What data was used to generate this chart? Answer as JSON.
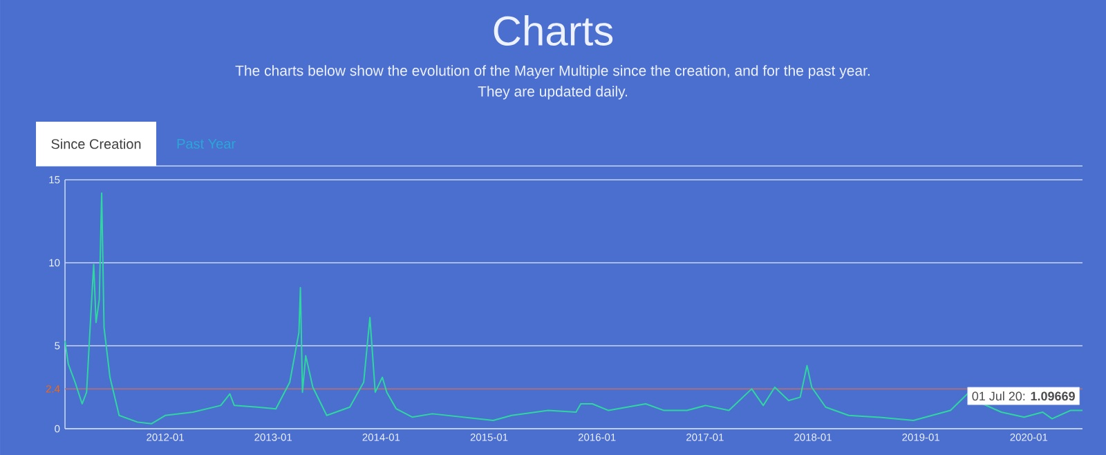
{
  "chart_data": {
    "type": "line",
    "title": "Charts",
    "subtitle": "The charts below show the evolution of the Mayer Multiple since the creation, and for the past year.",
    "annotations": [
      "They are updated daily.",
      "Since Creation",
      "Past Year",
      {
        "text": "01 Jul 20: **1.09669**",
        "x": "2020-07-01",
        "y": 1.09669
      }
    ],
    "x": [
      "2011-01-27",
      "2011-02-07",
      "2011-03-02",
      "2011-03-26",
      "2011-04-10",
      "2011-04-21",
      "2011-05-04",
      "2011-05-12",
      "2011-05-23",
      "2011-05-31",
      "2011-06-08",
      "2011-06-28",
      "2011-07-29",
      "2011-09-29",
      "2011-11-15",
      "2012-01-01",
      "2012-04-04",
      "2012-07-07",
      "2012-08-07",
      "2012-08-22",
      "2012-11-08",
      "2013-01-10",
      "2013-02-26",
      "2013-03-29",
      "2013-04-03",
      "2013-04-10",
      "2013-04-21",
      "2013-05-15",
      "2013-07-01",
      "2013-09-17",
      "2013-11-03",
      "2013-11-24",
      "2013-12-12",
      "2014-01-05",
      "2014-01-20",
      "2014-02-21",
      "2014-04-16",
      "2014-06-23",
      "2015-01-15",
      "2015-03-18",
      "2015-07-20",
      "2015-10-22",
      "2015-11-07",
      "2015-12-16",
      "2016-02-09",
      "2016-06-14",
      "2016-08-15",
      "2016-11-01",
      "2017-01-03",
      "2017-03-23",
      "2017-06-08",
      "2017-07-17",
      "2017-08-25",
      "2017-10-11",
      "2017-11-19",
      "2017-12-12",
      "2017-12-28",
      "2018-02-13",
      "2018-05-02",
      "2018-08-04",
      "2018-12-07",
      "2019-04-11",
      "2019-06-13",
      "2019-07-29",
      "2019-09-30",
      "2019-12-16",
      "2020-02-17",
      "2020-03-20",
      "2020-05-21",
      "2020-07-01"
    ],
    "values": [
      5.3,
      3.9,
      2.8,
      1.5,
      2.2,
      5.8,
      9.9,
      6.4,
      7.8,
      14.2,
      6.1,
      3.1,
      0.8,
      0.4,
      0.3,
      0.8,
      1.0,
      1.4,
      2.1,
      1.4,
      1.3,
      1.2,
      2.8,
      5.8,
      8.5,
      2.2,
      4.4,
      2.5,
      0.8,
      1.3,
      2.8,
      6.7,
      2.2,
      3.1,
      2.2,
      1.2,
      0.7,
      0.9,
      0.5,
      0.8,
      1.1,
      1.0,
      1.5,
      1.5,
      1.1,
      1.5,
      1.1,
      1.1,
      1.4,
      1.1,
      2.4,
      1.4,
      2.5,
      1.7,
      1.9,
      3.8,
      2.5,
      1.3,
      0.8,
      0.7,
      0.5,
      1.1,
      2.2,
      1.5,
      1.0,
      0.7,
      1.0,
      0.6,
      1.1,
      1.1
    ],
    "color": "#2fd6a0",
    "xlim": [
      "2011-01-27",
      "2020-07-01"
    ],
    "xticks": [
      {
        "value": "2012-01-01",
        "label": "2012-01"
      },
      {
        "value": "2013-01-01",
        "label": "2013-01"
      },
      {
        "value": "2014-01-01",
        "label": "2014-01"
      },
      {
        "value": "2015-01-01",
        "label": "2015-01"
      },
      {
        "value": "2016-01-01",
        "label": "2016-01"
      },
      {
        "value": "2017-01-01",
        "label": "2017-01"
      },
      {
        "value": "2018-01-01",
        "label": "2018-01"
      },
      {
        "value": "2019-01-01",
        "label": "2019-01"
      },
      {
        "value": "2020-01-01",
        "label": "2020-01"
      }
    ],
    "ylim": [
      0,
      15
    ],
    "yticks": [
      0,
      5,
      10,
      15
    ],
    "grid": "y",
    "ref_lines": [
      {
        "axis": "y",
        "value": 2.4,
        "label": "2.4",
        "color": "#b0707a"
      }
    ]
  }
}
